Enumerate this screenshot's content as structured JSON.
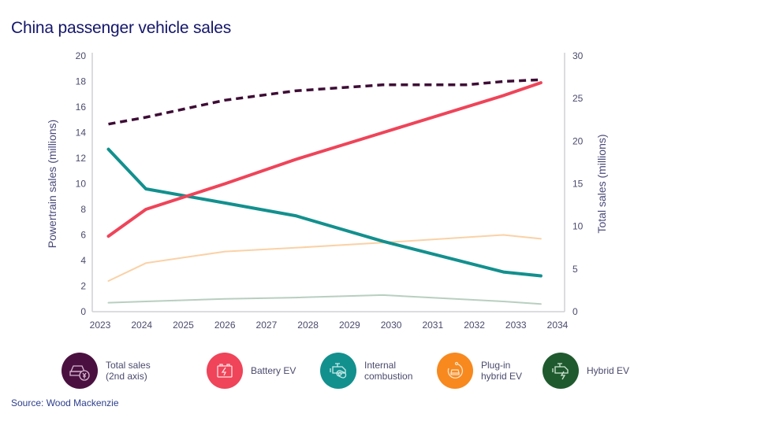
{
  "title": "China passenger vehicle sales",
  "source": "Source: Wood Mackenzie",
  "legend": [
    {
      "label": "Total sales\n(2nd axis)",
      "color": "#4a1140",
      "icon": "car-money-icon"
    },
    {
      "label": "Battery EV",
      "color": "#ef4459",
      "icon": "battery-charge-icon"
    },
    {
      "label": "Internal\ncombustion",
      "color": "#12908e",
      "icon": "engine-icon"
    },
    {
      "label": "Plug-in\nhybrid EV",
      "color": "#f7891f",
      "icon": "plug-car-icon"
    },
    {
      "label": "Hybrid EV",
      "color": "#1f5a2e",
      "icon": "engine-bolt-icon"
    }
  ],
  "chart_data": {
    "type": "line",
    "title": "China passenger vehicle sales",
    "xlabel": "",
    "ylabel": "Powertrain sales (millions)",
    "y2label": "Total sales (millions)",
    "xlim": [
      2023,
      2034
    ],
    "ylim": [
      0,
      20
    ],
    "y2lim": [
      0,
      30
    ],
    "xticks": [
      "2023",
      "2024",
      "2025",
      "2026",
      "2027",
      "2028",
      "2029",
      "2030",
      "2031",
      "2032",
      "2033",
      "2034"
    ],
    "yticks": [
      "0",
      "2",
      "4",
      "6",
      "8",
      "10",
      "12",
      "14",
      "16",
      "18",
      "20"
    ],
    "y2ticks": [
      "0",
      "5",
      "10",
      "15",
      "20",
      "25",
      "30"
    ],
    "grid": false,
    "legend_position": "bottom",
    "series": [
      {
        "name": "Total sales (2nd axis)",
        "axis": "right",
        "color": "#3d0c35",
        "dashed": true,
        "width": 3.5,
        "x": [
          2023.2,
          2024.1,
          2026.0,
          2027.7,
          2029.8,
          2031.8,
          2032.7,
          2033.6
        ],
        "values": [
          22.0,
          22.8,
          24.8,
          25.9,
          26.6,
          26.6,
          27.0,
          27.2
        ]
      },
      {
        "name": "Battery EV",
        "axis": "left",
        "color": "#ef4459",
        "dashed": false,
        "width": 4,
        "x": [
          2023.2,
          2024.1,
          2026.0,
          2027.7,
          2029.8,
          2032.7,
          2033.6
        ],
        "values": [
          5.9,
          8.0,
          10.0,
          11.9,
          14.0,
          16.9,
          17.9
        ]
      },
      {
        "name": "Internal combustion",
        "axis": "left",
        "color": "#12908e",
        "dashed": false,
        "width": 4,
        "x": [
          2023.2,
          2024.1,
          2026.0,
          2027.7,
          2029.8,
          2032.7,
          2033.6
        ],
        "values": [
          12.7,
          9.6,
          8.5,
          7.5,
          5.5,
          3.1,
          2.8
        ]
      },
      {
        "name": "Plug-in hybrid EV",
        "axis": "left",
        "color": "#fad1a6",
        "dashed": false,
        "width": 2,
        "x": [
          2023.2,
          2024.1,
          2026.0,
          2027.7,
          2029.8,
          2032.7,
          2033.6
        ],
        "values": [
          2.4,
          3.8,
          4.7,
          5.0,
          5.4,
          6.0,
          5.7
        ]
      },
      {
        "name": "Hybrid EV",
        "axis": "left",
        "color": "#b8cfc0",
        "dashed": false,
        "width": 2,
        "x": [
          2023.2,
          2024.1,
          2026.0,
          2027.7,
          2029.8,
          2032.7,
          2033.6
        ],
        "values": [
          0.7,
          0.8,
          1.0,
          1.1,
          1.3,
          0.8,
          0.6
        ]
      }
    ]
  }
}
